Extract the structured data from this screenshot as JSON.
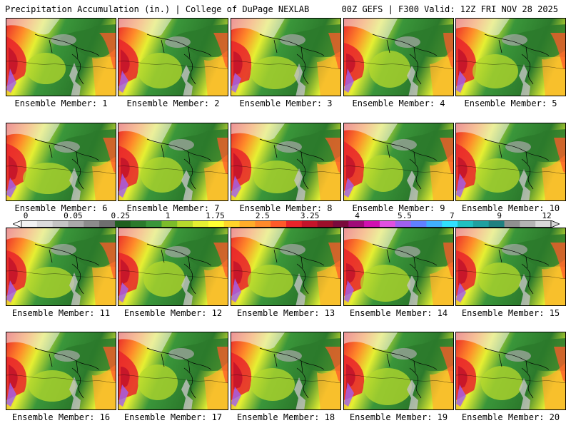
{
  "header": {
    "left_title": "Precipitation Accumulation (in.) | College of DuPage NEXLAB",
    "right_title": "00Z GEFS | F300 Valid: 12Z FRI NOV 28 2025"
  },
  "colorbar": {
    "labels": [
      "0",
      "0.05",
      "0.25",
      "1",
      "1.75",
      "2.5",
      "3.25",
      "4",
      "5.5",
      "7",
      "9",
      "12"
    ],
    "colors": [
      "#f2f2f2",
      "#dcdcdc",
      "#c4c4c4",
      "#a9a9a9",
      "#8c8c8c",
      "#6e6e6e",
      "#1f5f1f",
      "#2c7a2c",
      "#3a963a",
      "#7cbc2a",
      "#b7d92c",
      "#e6ef32",
      "#ffff33",
      "#ffd42a",
      "#ffad2a",
      "#ff8a2a",
      "#ff5a2a",
      "#e8232a",
      "#c4142a",
      "#9c0f2a",
      "#7a0a3c",
      "#a00a78",
      "#d010b0",
      "#e050e0",
      "#a060f0",
      "#6080ff",
      "#40b0ff",
      "#30e0ff",
      "#20c0c0",
      "#20a0a0",
      "#208080",
      "#909090",
      "#b4b4b4",
      "#d8d8d8"
    ]
  },
  "panels": [
    {
      "label": "Ensemble Member: 1"
    },
    {
      "label": "Ensemble Member: 2"
    },
    {
      "label": "Ensemble Member: 3"
    },
    {
      "label": "Ensemble Member: 4"
    },
    {
      "label": "Ensemble Member: 5"
    },
    {
      "label": "Ensemble Member: 6"
    },
    {
      "label": "Ensemble Member: 7"
    },
    {
      "label": "Ensemble Member: 8"
    },
    {
      "label": "Ensemble Member: 9"
    },
    {
      "label": "Ensemble Member: 10"
    },
    {
      "label": "Ensemble Member: 11"
    },
    {
      "label": "Ensemble Member: 12"
    },
    {
      "label": "Ensemble Member: 13"
    },
    {
      "label": "Ensemble Member: 14"
    },
    {
      "label": "Ensemble Member: 15"
    },
    {
      "label": "Ensemble Member: 16"
    },
    {
      "label": "Ensemble Member: 17"
    },
    {
      "label": "Ensemble Member: 18"
    },
    {
      "label": "Ensemble Member: 19"
    },
    {
      "label": "Ensemble Member: 20"
    }
  ]
}
